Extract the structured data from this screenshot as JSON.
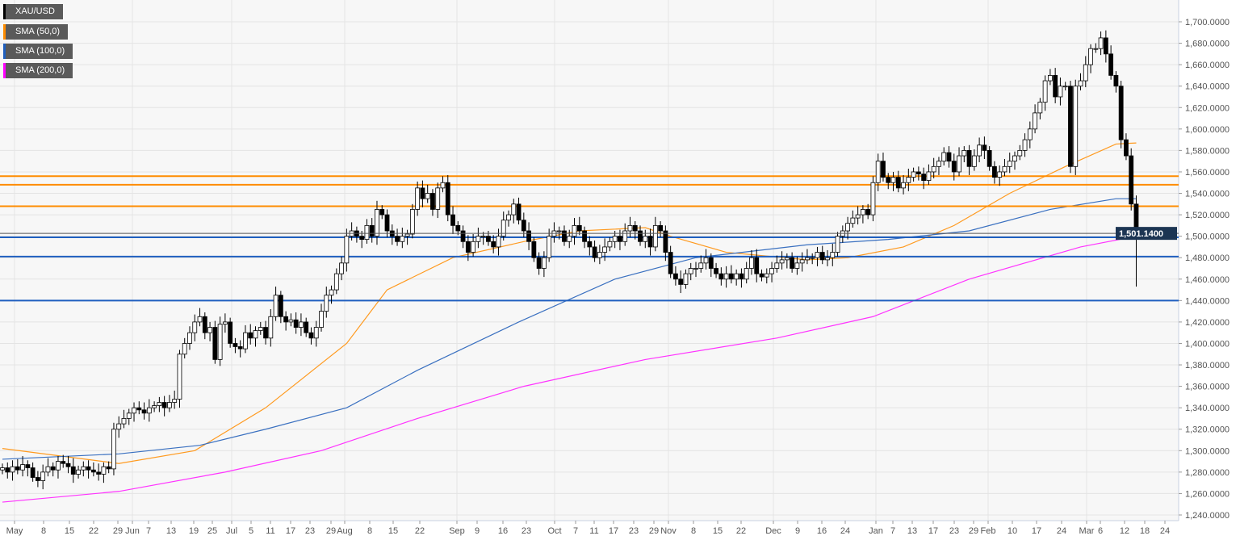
{
  "legend": [
    {
      "label": "XAU/USD",
      "color": "#000000"
    },
    {
      "label": "SMA (50,0)",
      "color": "#ff8c00"
    },
    {
      "label": "SMA (100,0)",
      "color": "#1f5fbf"
    },
    {
      "label": "SMA (200,0)",
      "color": "#ff00ff"
    }
  ],
  "chart_data": {
    "type": "candlestick",
    "symbol": "XAU/USD",
    "last_price_label": "1,501.1400",
    "last_price": 1501.14,
    "ylim": [
      1240,
      1700
    ],
    "y_ticks": [
      "1,700.0000",
      "1,680.0000",
      "1,660.0000",
      "1,640.0000",
      "1,620.0000",
      "1,600.0000",
      "1,580.0000",
      "1,560.0000",
      "1,540.0000",
      "1,520.0000",
      "1,500.0000",
      "1,480.0000",
      "1,460.0000",
      "1,440.0000",
      "1,420.0000",
      "1,400.0000",
      "1,380.0000",
      "1,360.0000",
      "1,340.0000",
      "1,320.0000",
      "1,300.0000",
      "1,280.0000",
      "1,260.0000",
      "1,240.0000"
    ],
    "x_ticks": [
      "May",
      "8",
      "15",
      "22",
      "29",
      "Jun",
      "7",
      "13",
      "19",
      "25",
      "Jul",
      "5",
      "11",
      "17",
      "23",
      "29",
      "Aug",
      "8",
      "15",
      "22",
      "Sep",
      "9",
      "16",
      "23",
      "Oct",
      "7",
      "11",
      "17",
      "23",
      "29",
      "Nov",
      "8",
      "15",
      "22",
      "Dec",
      "9",
      "16",
      "24",
      "Jan",
      "7",
      "13",
      "17",
      "23",
      "29",
      "Feb",
      "10",
      "17",
      "24",
      "Mar",
      "6",
      "12",
      "18",
      "24"
    ],
    "closes": [
      1284,
      1280,
      1285,
      1282,
      1287,
      1284,
      1275,
      1272,
      1280,
      1285,
      1282,
      1290,
      1288,
      1285,
      1278,
      1282,
      1285,
      1282,
      1280,
      1278,
      1285,
      1283,
      1320,
      1325,
      1330,
      1335,
      1340,
      1338,
      1335,
      1340,
      1342,
      1345,
      1340,
      1345,
      1348,
      1390,
      1400,
      1410,
      1420,
      1425,
      1410,
      1415,
      1385,
      1418,
      1420,
      1400,
      1397,
      1395,
      1410,
      1405,
      1412,
      1415,
      1405,
      1425,
      1445,
      1425,
      1420,
      1422,
      1415,
      1420,
      1410,
      1405,
      1415,
      1430,
      1445,
      1450,
      1465,
      1475,
      1500,
      1505,
      1500,
      1497,
      1510,
      1500,
      1525,
      1520,
      1505,
      1500,
      1495,
      1500,
      1502,
      1525,
      1545,
      1535,
      1540,
      1525,
      1545,
      1550,
      1520,
      1510,
      1505,
      1495,
      1485,
      1495,
      1500,
      1500,
      1495,
      1490,
      1500,
      1515,
      1520,
      1530,
      1515,
      1505,
      1495,
      1480,
      1470,
      1480,
      1500,
      1505,
      1505,
      1495,
      1500,
      1510,
      1505,
      1495,
      1490,
      1480,
      1485,
      1490,
      1495,
      1500,
      1495,
      1505,
      1510,
      1505,
      1495,
      1500,
      1490,
      1510,
      1505,
      1485,
      1465,
      1460,
      1455,
      1465,
      1470,
      1470,
      1475,
      1480,
      1470,
      1465,
      1460,
      1465,
      1460,
      1465,
      1460,
      1470,
      1480,
      1465,
      1462,
      1465,
      1470,
      1475,
      1478,
      1480,
      1470,
      1475,
      1478,
      1480,
      1480,
      1485,
      1478,
      1480,
      1485,
      1500,
      1505,
      1512,
      1517,
      1520,
      1525,
      1520,
      1550,
      1570,
      1555,
      1550,
      1555,
      1545,
      1550,
      1555,
      1560,
      1558,
      1552,
      1560,
      1565,
      1570,
      1578,
      1570,
      1560,
      1575,
      1580,
      1565,
      1575,
      1585,
      1580,
      1565,
      1555,
      1560,
      1565,
      1570,
      1575,
      1580,
      1590,
      1600,
      1615,
      1625,
      1645,
      1650,
      1630,
      1640,
      1640,
      1565,
      1640,
      1645,
      1660,
      1675,
      1675,
      1685,
      1670,
      1650,
      1640,
      1590,
      1575,
      1530,
      1501.14
    ],
    "sma": [
      {
        "name": "SMA (50,0)",
        "color": "#ff9a1f",
        "points": [
          [
            0,
            1302
          ],
          [
            23,
            1288
          ],
          [
            38,
            1300
          ],
          [
            52,
            1340
          ],
          [
            68,
            1400
          ],
          [
            76,
            1450
          ],
          [
            89,
            1480
          ],
          [
            103,
            1495
          ],
          [
            114,
            1505
          ],
          [
            127,
            1508
          ],
          [
            132,
            1500
          ],
          [
            143,
            1485
          ],
          [
            159,
            1478
          ],
          [
            167,
            1480
          ],
          [
            178,
            1490
          ],
          [
            188,
            1510
          ],
          [
            199,
            1540
          ],
          [
            210,
            1565
          ],
          [
            220,
            1586
          ],
          [
            224,
            1587
          ]
        ]
      },
      {
        "name": "SMA (100,0)",
        "color": "#3a70c0",
        "points": [
          [
            0,
            1292
          ],
          [
            23,
            1297
          ],
          [
            39,
            1305
          ],
          [
            52,
            1320
          ],
          [
            68,
            1340
          ],
          [
            82,
            1375
          ],
          [
            102,
            1420
          ],
          [
            121,
            1460
          ],
          [
            137,
            1480
          ],
          [
            159,
            1492
          ],
          [
            175,
            1497
          ],
          [
            191,
            1505
          ],
          [
            207,
            1525
          ],
          [
            220,
            1535
          ],
          [
            224,
            1535
          ]
        ]
      },
      {
        "name": "SMA (200,0)",
        "color": "#ff33ff",
        "points": [
          [
            0,
            1252
          ],
          [
            23,
            1262
          ],
          [
            44,
            1280
          ],
          [
            63,
            1300
          ],
          [
            82,
            1330
          ],
          [
            103,
            1360
          ],
          [
            127,
            1385
          ],
          [
            153,
            1405
          ],
          [
            172,
            1425
          ],
          [
            191,
            1460
          ],
          [
            213,
            1490
          ],
          [
            224,
            1500
          ]
        ]
      }
    ],
    "horizontal_levels": [
      {
        "value": 1556,
        "color": "#ff8c00"
      },
      {
        "value": 1548,
        "color": "#ff8c00"
      },
      {
        "value": 1528,
        "color": "#ff8c00"
      },
      {
        "value": 1499,
        "color": "#1f5fbf"
      },
      {
        "value": 1481,
        "color": "#1f5fbf"
      },
      {
        "value": 1440,
        "color": "#1f5fbf"
      }
    ]
  }
}
